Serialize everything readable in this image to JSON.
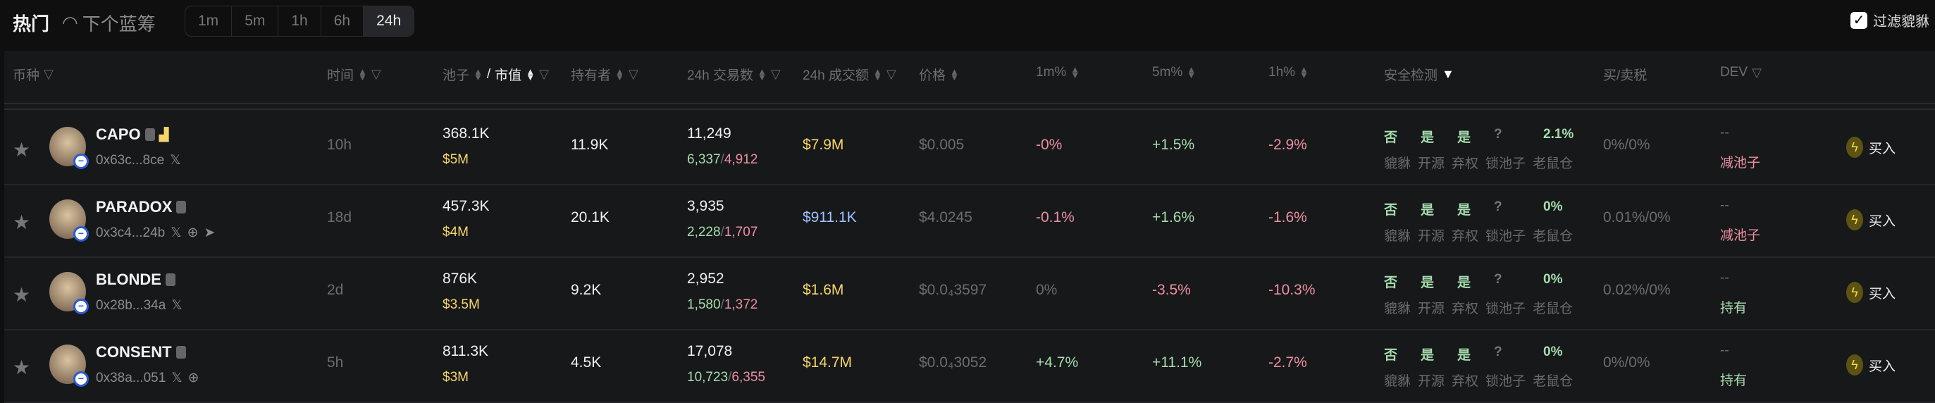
{
  "top": {
    "hot": "热门",
    "next": "下个蓝筹",
    "timeframes": [
      "1m",
      "5m",
      "1h",
      "6h",
      "24h"
    ],
    "active_timeframe": "24h",
    "filter_label": "过滤貔貅",
    "filter_checked": true
  },
  "headers": {
    "coin": "币种",
    "time": "时间",
    "pool": "池子",
    "mcap": "市值",
    "holders": "持有者",
    "tx": "24h 交易数",
    "volume": "24h 成交额",
    "price": "价格",
    "m1": "1m%",
    "m5": "5m%",
    "h1": "1h%",
    "security": "安全检测",
    "tax": "买/卖税",
    "dev": "DEV"
  },
  "security_labels": [
    "貔貅",
    "开源",
    "弃权",
    "锁池子",
    "老鼠仓"
  ],
  "buy_label": "买入",
  "colors": {
    "accent_yellow": "#f6d66a",
    "up": "#a6dcae",
    "down": "#ec8fa3",
    "volume_blue": "#9ec2ff"
  },
  "rows": [
    {
      "name": "CAPO",
      "addr": "0x63c...8ce",
      "socials": [
        "x"
      ],
      "extra_icon": "team-icon",
      "time": "10h",
      "pool": "368.1K",
      "mcap": "$5M",
      "holders": "11.9K",
      "tx": "11,249",
      "buys": "6,337",
      "sells": "4,912",
      "volume": "$7.9M",
      "volume_color": "yellow",
      "price": "$0.005",
      "m1": "-0%",
      "m1_dir": "down",
      "m5": "+1.5%",
      "m5_dir": "up",
      "h1": "-2.9%",
      "h1_dir": "down",
      "sec": [
        "否",
        "是",
        "是",
        "?",
        "2.1%"
      ],
      "tax": "0%/0%",
      "dev": "--",
      "dev_status": "减池子",
      "dev_dir": "down"
    },
    {
      "name": "PARADOX",
      "addr": "0x3c4...24b",
      "socials": [
        "x",
        "web",
        "telegram"
      ],
      "time": "18d",
      "pool": "457.3K",
      "mcap": "$4M",
      "holders": "20.1K",
      "tx": "3,935",
      "buys": "2,228",
      "sells": "1,707",
      "volume": "$911.1K",
      "volume_color": "blue",
      "price": "$4.0245",
      "m1": "-0.1%",
      "m1_dir": "down",
      "m5": "+1.6%",
      "m5_dir": "up",
      "h1": "-1.6%",
      "h1_dir": "down",
      "sec": [
        "否",
        "是",
        "是",
        "?",
        "0%"
      ],
      "tax": "0.01%/0%",
      "dev": "--",
      "dev_status": "减池子",
      "dev_dir": "down"
    },
    {
      "name": "BLONDE",
      "addr": "0x28b...34a",
      "socials": [
        "x"
      ],
      "time": "2d",
      "pool": "876K",
      "mcap": "$3.5M",
      "holders": "9.2K",
      "tx": "2,952",
      "buys": "1,580",
      "sells": "1,372",
      "volume": "$1.6M",
      "volume_color": "yellow",
      "price": "$0.0₄3597",
      "m1": "0%",
      "m1_dir": "flat",
      "m5": "-3.5%",
      "m5_dir": "down",
      "h1": "-10.3%",
      "h1_dir": "down",
      "sec": [
        "否",
        "是",
        "是",
        "?",
        "0%"
      ],
      "tax": "0.02%/0%",
      "dev": "--",
      "dev_status": "持有",
      "dev_dir": "up"
    },
    {
      "name": "CONSENT",
      "addr": "0x38a...051",
      "socials": [
        "x",
        "web"
      ],
      "time": "5h",
      "pool": "811.3K",
      "mcap": "$3M",
      "holders": "4.5K",
      "tx": "17,078",
      "buys": "10,723",
      "sells": "6,355",
      "volume": "$14.7M",
      "volume_color": "yellow",
      "price": "$0.0₄3052",
      "m1": "+4.7%",
      "m1_dir": "up",
      "m5": "+11.1%",
      "m5_dir": "up",
      "h1": "-2.7%",
      "h1_dir": "down",
      "sec": [
        "否",
        "是",
        "是",
        "?",
        "0%"
      ],
      "tax": "0%/0%",
      "dev": "--",
      "dev_status": "持有",
      "dev_dir": "up"
    }
  ]
}
